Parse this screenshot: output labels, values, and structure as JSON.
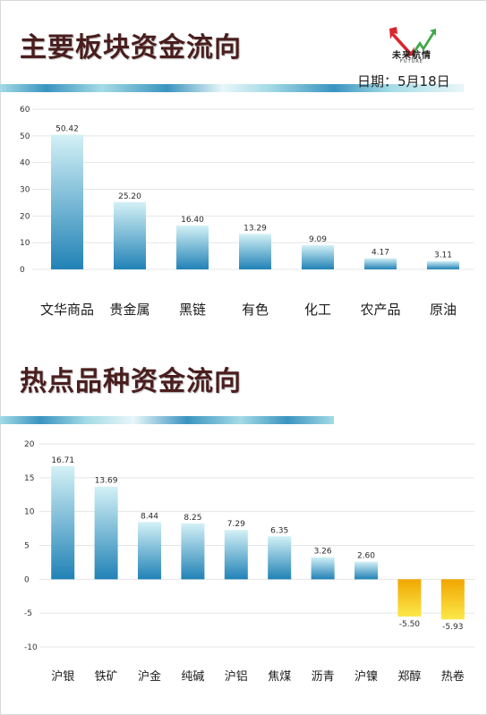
{
  "header": {
    "title": "主要板块资金流向",
    "logo_text": "未来航情",
    "logo_sub": "FUTURE",
    "date_label": "日期：",
    "date_value": "5月18日"
  },
  "section2": {
    "title": "热点品种资金流向"
  },
  "colors": {
    "title": "#4a1e1e",
    "bar_top": "#d3f1f6",
    "bar_bottom": "#2182b6",
    "neg_top": "#f0a600",
    "neg_bottom": "#fce84a",
    "band_light": "#a4dbe6",
    "band_dark": "#3a94c0",
    "logo_red": "#d9262c",
    "logo_green": "#3ea84a"
  },
  "chart_data": [
    {
      "type": "bar",
      "categories": [
        "文华商品",
        "贵金属",
        "黑链",
        "有色",
        "化工",
        "农产品",
        "原油"
      ],
      "values": [
        50.42,
        25.2,
        16.4,
        13.29,
        9.09,
        4.17,
        3.11
      ],
      "data_labels": [
        "50.42",
        "25.20",
        "16.40",
        "13.29",
        "9.09",
        "4.17",
        "3.11"
      ],
      "yticks": [
        0,
        10,
        20,
        30,
        40,
        50,
        60
      ],
      "ylim": [
        0,
        60
      ],
      "grid": true,
      "legend": "none"
    },
    {
      "type": "bar",
      "categories": [
        "沪银",
        "铁矿",
        "沪金",
        "纯碱",
        "沪铝",
        "焦煤",
        "沥青",
        "沪镍",
        "郑醇",
        "热卷"
      ],
      "values": [
        16.71,
        13.69,
        8.44,
        8.25,
        7.29,
        6.35,
        3.26,
        2.6,
        -5.5,
        -5.93
      ],
      "data_labels": [
        "16.71",
        "13.69",
        "8.44",
        "8.25",
        "7.29",
        "6.35",
        "3.26",
        "2.60",
        "-5.50",
        "-5.93"
      ],
      "yticks": [
        -10,
        -5,
        0,
        5,
        10,
        15,
        20
      ],
      "ylim": [
        -10,
        20
      ],
      "grid": true,
      "legend": "none"
    }
  ]
}
